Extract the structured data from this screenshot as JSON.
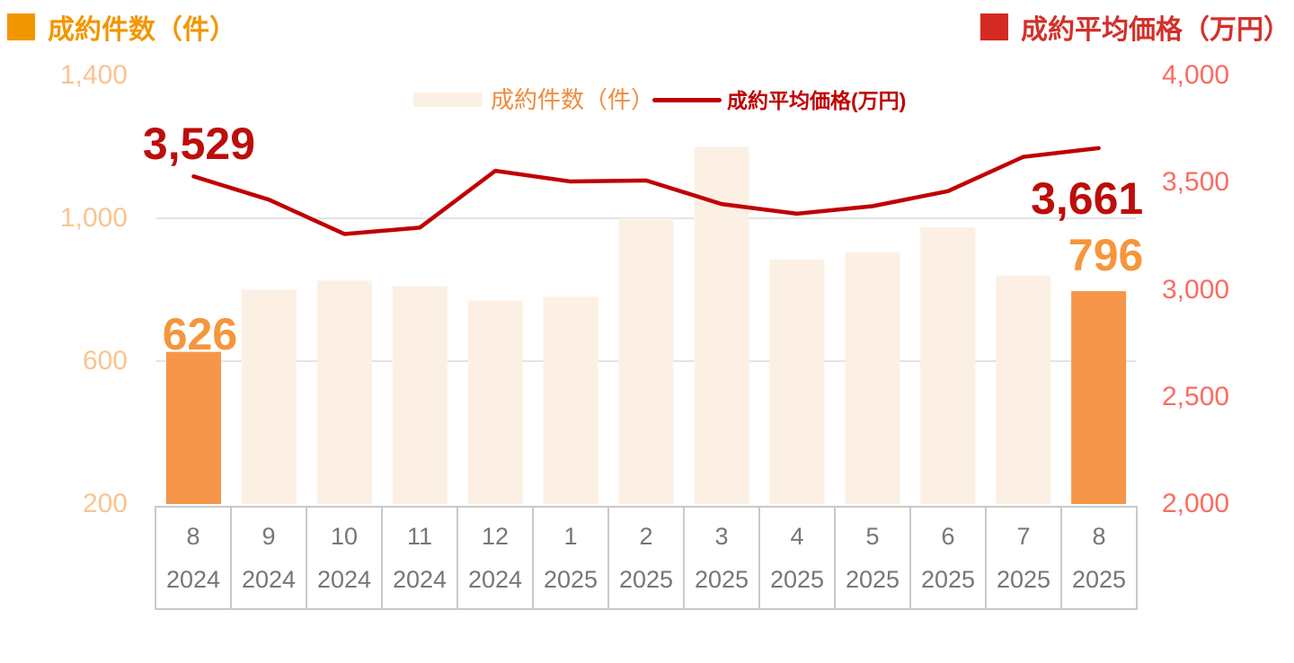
{
  "header": {
    "left_title": "成約件数（件）",
    "right_title": "成約平均価格（万円）"
  },
  "legend": {
    "bars_label": "成約件数（件）",
    "line_label": "成約平均価格(万円)"
  },
  "colors": {
    "title_orange": "#f29600",
    "title_red": "#d3302a",
    "square_orange": "#f29600",
    "square_red": "#d32b23",
    "bar_normal": "#fcf0e5",
    "bar_highlight": "#f5964a",
    "line_red": "#c00000",
    "label_orange": "#f5953c",
    "label_dark_red": "#bc0e0b",
    "tick_left_orange": "#fac392",
    "tick_right_red": "#fa6b62",
    "legend_bar_text": "#f08b3d",
    "gridline": "#e4e4e4",
    "axis_table_border": "#c9c9c9",
    "axis_table_text": "#767676"
  },
  "chart_data": {
    "type": "bar+line dual axis",
    "title_left_axis": "成約件数（件）",
    "title_right_axis": "成約平均価格（万円）",
    "categories": {
      "months": [
        8,
        9,
        10,
        11,
        12,
        1,
        2,
        3,
        4,
        5,
        6,
        7,
        8
      ],
      "years": [
        2024,
        2024,
        2024,
        2024,
        2024,
        2025,
        2025,
        2025,
        2025,
        2025,
        2025,
        2025,
        2025
      ]
    },
    "series": [
      {
        "name": "成約件数（件）",
        "type": "bar",
        "axis": "left",
        "values": [
          626,
          800,
          825,
          810,
          770,
          780,
          1000,
          1200,
          885,
          905,
          975,
          840,
          796
        ],
        "highlight_indices": [
          0,
          12
        ]
      },
      {
        "name": "成約平均価格(万円)",
        "type": "line",
        "axis": "right",
        "values": [
          3529,
          3420,
          3260,
          3290,
          3555,
          3505,
          3510,
          3400,
          3355,
          3390,
          3460,
          3620,
          3661
        ]
      }
    ],
    "left_axis": {
      "range": [
        200,
        1400
      ],
      "ticks": [
        1400,
        1000,
        600,
        200
      ]
    },
    "right_axis": {
      "range": [
        2000,
        4000
      ],
      "ticks": [
        4000,
        3500,
        3000,
        2500,
        2000
      ]
    },
    "gridlines_left_values": [
      1000,
      600
    ],
    "data_labels": [
      {
        "text": "3,529",
        "series": "line",
        "index": 0
      },
      {
        "text": "3,661",
        "series": "line",
        "index": 12
      },
      {
        "text": "626",
        "series": "bar",
        "index": 0
      },
      {
        "text": "796",
        "series": "bar",
        "index": 12
      }
    ],
    "legend_position": "top-center",
    "grid": "horizontal only"
  }
}
